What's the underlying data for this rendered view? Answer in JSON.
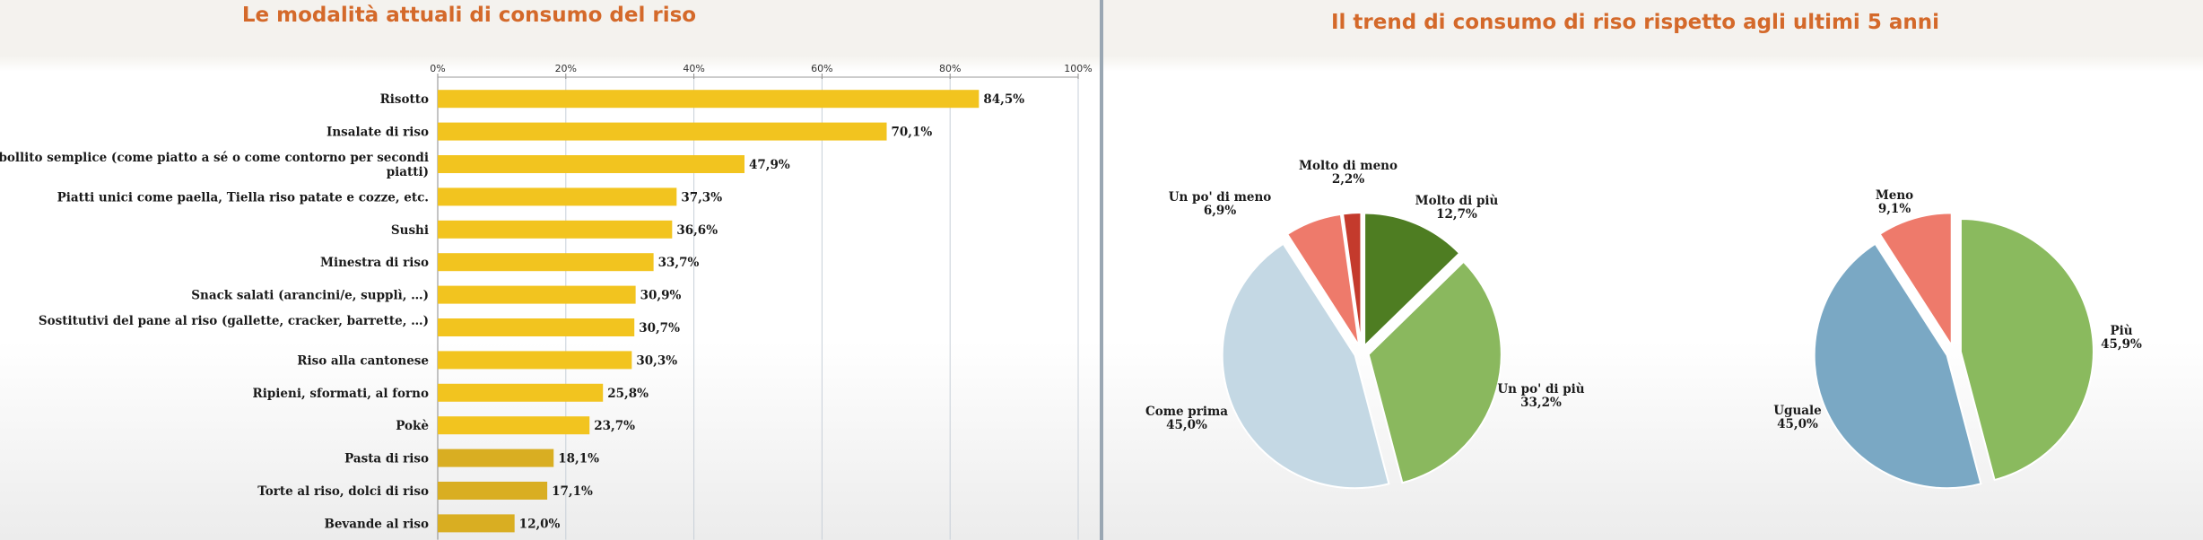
{
  "chart_data": [
    {
      "type": "bar",
      "orientation": "horizontal",
      "title": "Le modalità attuali di consumo del riso",
      "categories": [
        "Risotto",
        "Insalate di riso",
        "Riso bollito semplice (come piatto a sé o come contorno per secondi piatti)",
        "Piatti unici come paella, Tiella riso patate e cozze, etc.",
        "Sushi",
        "Minestra di riso",
        "Snack salati (arancini/e, supplì, …)",
        "Sostitutivi del pane al riso (gallette, cracker, barrette,  …)",
        "Riso alla cantonese",
        "Ripieni, sformati, al forno",
        "Pokè",
        "Pasta di riso",
        "Torte al riso, dolci di riso",
        "Bevande al riso"
      ],
      "values": [
        84.5,
        70.1,
        47.9,
        37.3,
        36.6,
        33.7,
        30.9,
        30.7,
        30.3,
        25.8,
        23.7,
        18.1,
        17.1,
        12.0
      ],
      "value_labels": [
        "84,5%",
        "70,1%",
        "47,9%",
        "37,3%",
        "36,6%",
        "33,7%",
        "30,9%",
        "30,7%",
        "30,3%",
        "25,8%",
        "23,7%",
        "18,1%",
        "17,1%",
        "12,0%"
      ],
      "xlim": [
        0,
        100
      ],
      "xticks": [
        "0%",
        "20%",
        "40%",
        "60%",
        "80%",
        "100%"
      ],
      "grid": true,
      "colors": {
        "bar": "#f2c41f",
        "bar_dark": "#d9ae22"
      }
    },
    {
      "type": "pie",
      "title": "Il trend di consumo di riso rispetto agli ultimi 5 anni",
      "slices": [
        {
          "label": "Molto di più",
          "value": 12.7,
          "value_label": "12,7%",
          "color": "#4e7d22"
        },
        {
          "label": "Un po' di più",
          "value": 33.2,
          "value_label": "33,2%",
          "color": "#8ab85e"
        },
        {
          "label": "Come prima",
          "value": 45.0,
          "value_label": "45,0%",
          "color": "#c4d8e4"
        },
        {
          "label": "Un po' di meno",
          "value": 6.9,
          "value_label": "6,9%",
          "color": "#ee7a6b"
        },
        {
          "label": "Molto di meno",
          "value": 2.2,
          "value_label": "2,2%",
          "color": "#c43a2c"
        }
      ]
    },
    {
      "type": "pie",
      "slices": [
        {
          "label": "Più",
          "value": 45.9,
          "value_label": "45,9%",
          "color": "#8aba5e"
        },
        {
          "label": "Uguale",
          "value": 45.0,
          "value_label": "45,0%",
          "color": "#7aa8c4"
        },
        {
          "label": "Meno",
          "value": 9.1,
          "value_label": "9,1%",
          "color": "#ee7a6b"
        }
      ]
    }
  ]
}
